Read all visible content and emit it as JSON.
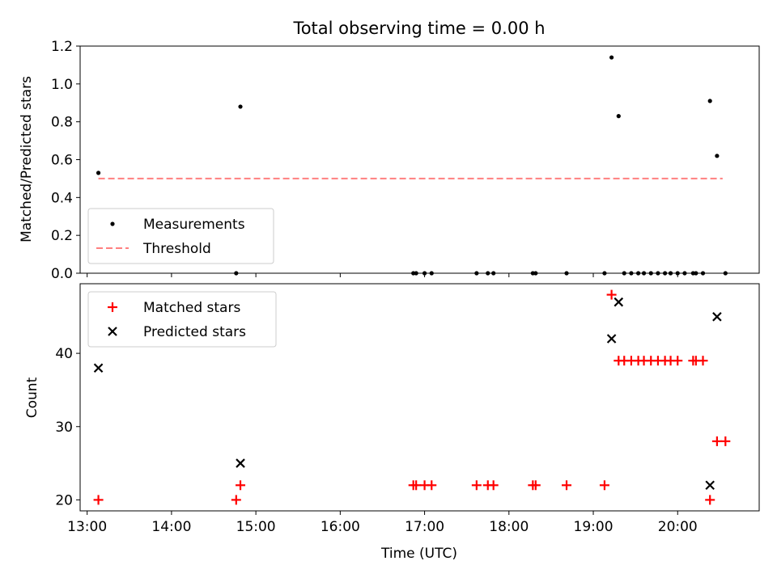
{
  "chart_data": {
    "title": "Total observing time = 0.00 h",
    "x_tick_labels": [
      "13:00",
      "14:00",
      "15:00",
      "16:00",
      "17:00",
      "18:00",
      "19:00",
      "20:00"
    ],
    "xlabel": "Time (UTC)",
    "xlim": [
      "12:55",
      "20:58"
    ],
    "colors": {
      "matched": "#ff0000",
      "predicted": "#000000",
      "threshold": "#ff8080",
      "measurements": "#000000"
    },
    "charts": [
      {
        "type": "scatter",
        "ylabel": "Matched/Predicted stars",
        "ylim": [
          0,
          1.2
        ],
        "yticks": [
          "0.0",
          "0.2",
          "0.4",
          "0.6",
          "0.8",
          "1.0",
          "1.2"
        ],
        "legend_position": "lower-left",
        "legend": [
          "Measurements",
          "Threshold"
        ],
        "threshold": {
          "name": "Threshold",
          "value": 0.5,
          "x_start": "13:08",
          "x_end": "20:32"
        },
        "series": [
          {
            "name": "Measurements",
            "points": [
              {
                "x": "13:08",
                "y": 0.53
              },
              {
                "x": "14:46",
                "y": 0.0
              },
              {
                "x": "14:49",
                "y": 0.88
              },
              {
                "x": "16:52",
                "y": 0.0
              },
              {
                "x": "16:54",
                "y": 0.0
              },
              {
                "x": "17:00",
                "y": 0.0
              },
              {
                "x": "17:05",
                "y": 0.0
              },
              {
                "x": "17:37",
                "y": 0.0
              },
              {
                "x": "17:45",
                "y": 0.0
              },
              {
                "x": "17:49",
                "y": 0.0
              },
              {
                "x": "18:17",
                "y": 0.0
              },
              {
                "x": "18:19",
                "y": 0.0
              },
              {
                "x": "18:41",
                "y": 0.0
              },
              {
                "x": "19:08",
                "y": 0.0
              },
              {
                "x": "19:13",
                "y": 1.14
              },
              {
                "x": "19:18",
                "y": 0.83
              },
              {
                "x": "19:22",
                "y": 0.0
              },
              {
                "x": "19:27",
                "y": 0.0
              },
              {
                "x": "19:32",
                "y": 0.0
              },
              {
                "x": "19:36",
                "y": 0.0
              },
              {
                "x": "19:41",
                "y": 0.0
              },
              {
                "x": "19:46",
                "y": 0.0
              },
              {
                "x": "19:51",
                "y": 0.0
              },
              {
                "x": "19:55",
                "y": 0.0
              },
              {
                "x": "20:00",
                "y": 0.0
              },
              {
                "x": "20:05",
                "y": 0.0
              },
              {
                "x": "20:11",
                "y": 0.0
              },
              {
                "x": "20:13",
                "y": 0.0
              },
              {
                "x": "20:18",
                "y": 0.0
              },
              {
                "x": "20:23",
                "y": 0.91
              },
              {
                "x": "20:28",
                "y": 0.62
              },
              {
                "x": "20:34",
                "y": 0.0
              }
            ]
          }
        ]
      },
      {
        "type": "scatter",
        "ylabel": "Count",
        "ylim": [
          18.5,
          49.5
        ],
        "yticks": [
          "20",
          "30",
          "40"
        ],
        "legend_position": "upper-left",
        "legend": [
          "Matched stars",
          "Predicted stars"
        ],
        "series": [
          {
            "name": "Matched stars",
            "marker": "plus",
            "points": [
              {
                "x": "13:08",
                "y": 20
              },
              {
                "x": "14:46",
                "y": 20
              },
              {
                "x": "14:49",
                "y": 22
              },
              {
                "x": "16:52",
                "y": 22
              },
              {
                "x": "16:54",
                "y": 22
              },
              {
                "x": "17:00",
                "y": 22
              },
              {
                "x": "17:05",
                "y": 22
              },
              {
                "x": "17:37",
                "y": 22
              },
              {
                "x": "17:45",
                "y": 22
              },
              {
                "x": "17:49",
                "y": 22
              },
              {
                "x": "18:17",
                "y": 22
              },
              {
                "x": "18:19",
                "y": 22
              },
              {
                "x": "18:41",
                "y": 22
              },
              {
                "x": "19:08",
                "y": 22
              },
              {
                "x": "19:13",
                "y": 48
              },
              {
                "x": "19:18",
                "y": 39
              },
              {
                "x": "19:22",
                "y": 39
              },
              {
                "x": "19:27",
                "y": 39
              },
              {
                "x": "19:32",
                "y": 39
              },
              {
                "x": "19:36",
                "y": 39
              },
              {
                "x": "19:41",
                "y": 39
              },
              {
                "x": "19:46",
                "y": 39
              },
              {
                "x": "19:51",
                "y": 39
              },
              {
                "x": "19:55",
                "y": 39
              },
              {
                "x": "20:00",
                "y": 39
              },
              {
                "x": "20:11",
                "y": 39
              },
              {
                "x": "20:13",
                "y": 39
              },
              {
                "x": "20:18",
                "y": 39
              },
              {
                "x": "20:23",
                "y": 20
              },
              {
                "x": "20:28",
                "y": 28
              },
              {
                "x": "20:34",
                "y": 28
              }
            ]
          },
          {
            "name": "Predicted stars",
            "marker": "x",
            "points": [
              {
                "x": "13:08",
                "y": 38
              },
              {
                "x": "14:49",
                "y": 25
              },
              {
                "x": "19:13",
                "y": 42
              },
              {
                "x": "19:18",
                "y": 47
              },
              {
                "x": "20:23",
                "y": 22
              },
              {
                "x": "20:28",
                "y": 45
              }
            ]
          }
        ]
      }
    ]
  }
}
